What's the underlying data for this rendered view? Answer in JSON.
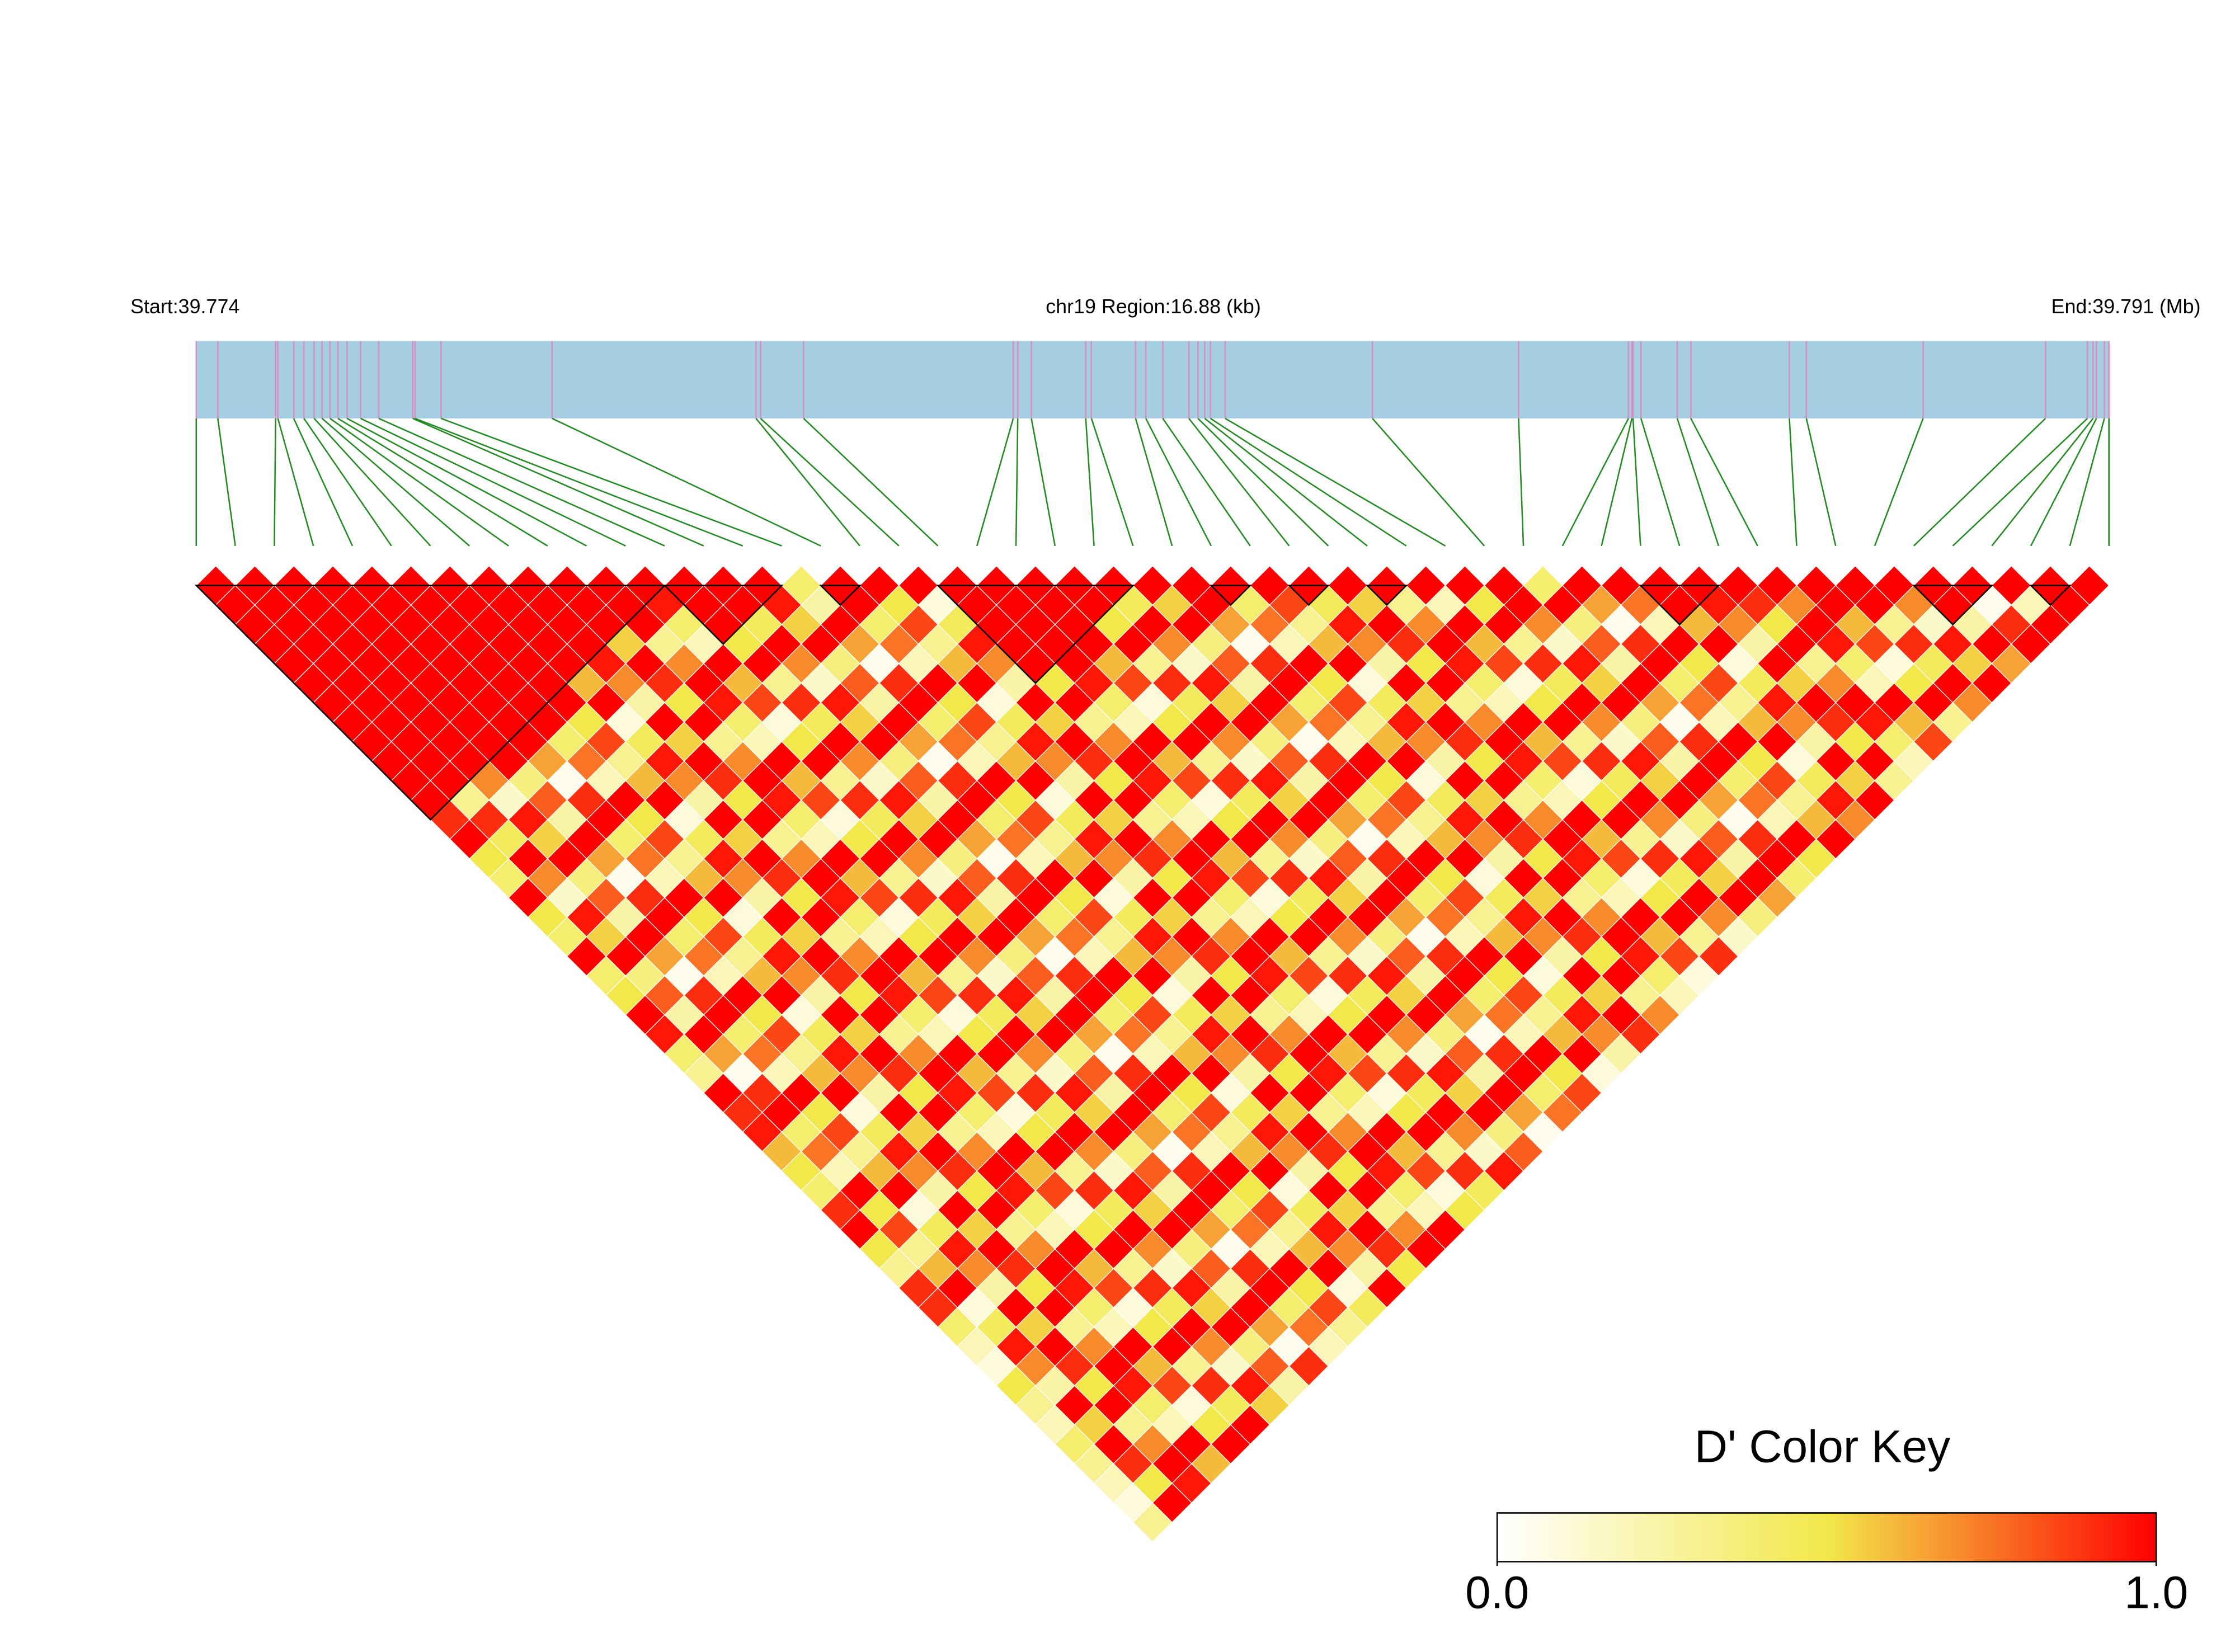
{
  "chart_data": {
    "type": "ld_heatmap",
    "start_label": "Start:39.774",
    "region_label": "chr19 Region:16.88 (kb)",
    "end_label": "End:39.791 (Mb)",
    "xlim": [
      0,
      16.88
    ],
    "snp_positions": [
      0.0,
      0.19,
      0.7,
      0.72,
      0.86,
      0.95,
      1.04,
      1.11,
      1.18,
      1.25,
      1.33,
      1.45,
      1.61,
      1.91,
      1.93,
      2.16,
      3.14,
      4.94,
      4.98,
      5.36,
      7.21,
      7.25,
      7.37,
      7.85,
      7.9,
      8.29,
      8.38,
      8.53,
      8.76,
      8.84,
      8.9,
      8.95,
      9.08,
      10.38,
      11.67,
      12.64,
      12.67,
      12.68,
      12.75,
      13.07,
      13.19,
      14.06,
      14.21,
      15.24,
      16.32,
      16.69,
      16.74,
      16.77,
      16.84,
      16.88
    ],
    "dprime": [
      [
        1,
        1,
        1,
        1,
        1,
        1,
        1,
        1,
        1,
        1,
        1,
        1,
        0.9,
        1,
        0.5,
        0.4,
        1,
        0.5,
        0.4,
        1,
        0.4,
        0.5,
        1,
        0.95,
        0.4,
        0.3,
        1,
        0.9,
        0.95,
        0.6,
        0.5,
        0.4,
        0.9,
        1,
        0.5,
        0.3,
        0.9,
        0.9,
        0.4,
        0.2,
        0.1,
        0.5,
        0.3,
        0.2,
        0.4,
        0.3,
        0.2,
        0.1,
        0.3
      ],
      [
        1,
        1,
        1,
        1,
        1,
        1,
        1,
        1,
        1,
        1,
        1,
        0.3,
        0.9,
        0.45,
        1,
        0.7,
        0.15,
        0.95,
        0.55,
        1,
        0.35,
        0.8,
        0.25,
        1,
        0.65,
        0.05,
        0.9,
        1,
        0.4,
        0.75,
        0.2,
        1,
        0.5,
        0.85,
        0.3,
        0.6,
        1,
        0.1,
        0.45,
        0.95,
        0.7,
        0.25,
        1,
        0.55,
        1,
        0.9,
        0.5,
        1
      ],
      [
        1,
        1,
        1,
        1,
        1,
        1,
        1,
        1,
        1,
        1,
        0.7,
        0.15,
        0.95,
        0.55,
        1,
        0.35,
        0.8,
        0.25,
        1,
        0.65,
        0.05,
        0.9,
        1,
        0.4,
        0.75,
        0.2,
        1,
        0.5,
        0.85,
        0.3,
        0.6,
        1,
        0.1,
        0.45,
        0.95,
        0.7,
        0.25,
        1,
        0.55,
        1,
        0.9,
        0.5,
        1,
        0.3,
        0.7,
        1,
        0.95
      ],
      [
        1,
        1,
        1,
        1,
        1,
        1,
        1,
        1,
        1,
        1,
        0.35,
        0.8,
        0.25,
        1,
        0.65,
        0.05,
        0.9,
        1,
        0.4,
        0.75,
        0.2,
        1,
        0.5,
        0.85,
        0.3,
        0.6,
        1,
        0.1,
        0.45,
        0.95,
        0.7,
        0.25,
        1,
        0.55,
        1,
        0.9,
        0.5,
        1,
        0.3,
        0.7,
        1,
        0.95,
        0.4,
        0.2,
        1,
        0.6
      ],
      [
        1,
        1,
        1,
        1,
        1,
        1,
        1,
        1,
        1,
        0.65,
        0.05,
        0.9,
        1,
        0.4,
        0.75,
        0.2,
        1,
        0.5,
        0.85,
        0.3,
        0.6,
        1,
        0.1,
        0.45,
        0.95,
        0.7,
        0.25,
        1,
        0.55,
        1,
        0.9,
        0.5,
        1,
        0.3,
        0.7,
        1,
        0.95,
        0.4,
        0.2,
        1,
        0.6,
        0.85,
        0.1,
        0.5,
        1
      ],
      [
        1,
        1,
        1,
        1,
        1,
        1,
        1,
        1,
        0.4,
        0.75,
        0.2,
        1,
        0.5,
        0.85,
        0.3,
        0.6,
        1,
        0.1,
        0.45,
        0.95,
        0.7,
        0.25,
        1,
        0.55,
        1,
        0.9,
        0.5,
        1,
        0.3,
        0.7,
        1,
        0.95,
        0.4,
        0.2,
        1,
        0.6,
        0.85,
        0.1,
        0.5,
        1,
        0.3,
        0.9,
        0.45,
        1
      ],
      [
        1,
        1,
        1,
        1,
        1,
        1,
        1,
        0.5,
        0.85,
        0.3,
        0.6,
        1,
        0.1,
        0.45,
        0.95,
        0.7,
        0.25,
        1,
        0.55,
        1,
        0.9,
        0.5,
        1,
        0.3,
        0.7,
        1,
        0.95,
        0.4,
        0.2,
        1,
        0.6,
        0.85,
        0.1,
        0.5,
        1,
        0.3,
        0.9,
        0.45,
        1,
        0.7,
        0.15,
        0.95,
        0.55
      ],
      [
        1,
        1,
        1,
        1,
        1,
        0.6,
        1,
        0.1,
        0.45,
        0.95,
        0.7,
        0.25,
        1,
        0.55,
        1,
        0.9,
        0.5,
        1,
        0.3,
        0.7,
        1,
        0.95,
        0.4,
        0.2,
        1,
        0.6,
        0.85,
        0.1,
        0.5,
        1,
        0.3,
        0.9,
        0.45,
        1,
        0.7,
        0.15,
        0.95,
        0.55,
        1,
        0.35,
        0.8,
        0.25
      ],
      [
        1,
        1,
        1,
        1,
        0.95,
        0.7,
        0.25,
        1,
        0.55,
        1,
        0.9,
        0.5,
        1,
        0.3,
        0.7,
        1,
        0.95,
        0.4,
        0.2,
        1,
        0.6,
        0.85,
        0.1,
        0.5,
        1,
        0.3,
        0.9,
        0.45,
        1,
        0.7,
        0.15,
        0.95,
        0.55,
        1,
        0.35,
        0.8,
        0.25,
        1,
        0.65,
        0.05,
        0.9
      ],
      [
        1,
        1,
        1,
        0.55,
        1,
        0.9,
        0.5,
        1,
        0.3,
        0.7,
        1,
        0.95,
        0.4,
        0.2,
        1,
        0.6,
        0.85,
        0.1,
        0.5,
        1,
        0.3,
        0.9,
        0.45,
        1,
        0.7,
        0.15,
        0.95,
        0.55,
        1,
        0.35,
        0.8,
        0.25,
        1,
        0.65,
        0.05,
        0.9,
        1,
        0.4,
        0.75,
        0.2
      ],
      [
        1,
        1,
        1,
        0.3,
        0.7,
        1,
        0.95,
        0.4,
        0.2,
        1,
        0.6,
        0.85,
        0.1,
        0.5,
        1,
        0.3,
        0.9,
        0.45,
        1,
        0.7,
        0.15,
        0.95,
        0.55,
        1,
        0.35,
        0.8,
        0.25,
        1,
        0.65,
        0.05,
        0.9,
        1,
        0.4,
        0.75,
        0.2,
        1,
        0.5,
        0.85,
        0.3
      ],
      [
        1,
        0.95,
        0.4,
        0.2,
        1,
        0.6,
        0.85,
        0.1,
        0.5,
        1,
        0.3,
        0.9,
        0.45,
        1,
        0.7,
        0.15,
        0.95,
        0.55,
        1,
        0.35,
        0.8,
        0.25,
        1,
        0.65,
        0.05,
        0.9,
        1,
        0.4,
        0.75,
        0.2,
        1,
        0.5,
        0.85,
        0.3,
        0.6,
        1,
        0.1,
        0.45
      ],
      [
        1,
        1,
        1,
        0.5,
        1,
        0.3,
        0.9,
        0.45,
        1,
        0.7,
        0.15,
        0.95,
        0.55,
        1,
        0.35,
        0.8,
        0.25,
        1,
        0.65,
        0.05,
        0.9,
        1,
        0.4,
        0.75,
        0.2,
        1,
        0.5,
        0.85,
        0.3,
        0.6,
        1,
        0.1,
        0.45,
        0.95,
        0.7,
        0.25,
        1
      ],
      [
        1,
        1,
        0.45,
        1,
        0.7,
        0.15,
        0.95,
        0.55,
        1,
        0.35,
        0.8,
        0.25,
        1,
        0.65,
        0.05,
        0.9,
        1,
        0.4,
        0.75,
        0.2,
        1,
        0.5,
        0.85,
        0.3,
        0.6,
        1,
        0.1,
        0.45,
        0.95,
        0.7,
        0.25,
        1,
        0.55,
        1,
        0.9,
        0.5
      ],
      [
        1,
        0.95,
        0.55,
        1,
        0.35,
        0.8,
        0.25,
        1,
        0.65,
        0.05,
        0.9,
        1,
        0.4,
        0.75,
        0.2,
        1,
        0.5,
        0.85,
        0.3,
        0.6,
        1,
        0.1,
        0.45,
        0.95,
        0.7,
        0.25,
        1,
        0.55,
        1,
        0.9,
        0.5,
        1,
        0.3,
        0.7,
        1
      ],
      [
        0.4,
        0.25,
        1,
        0.65,
        0.05,
        0.9,
        1,
        0.4,
        0.75,
        0.2,
        1,
        0.5,
        0.85,
        0.3,
        0.6,
        1,
        0.1,
        0.45,
        0.95,
        0.7,
        0.25,
        1,
        0.55,
        1,
        0.9,
        0.5,
        1,
        0.3,
        0.7,
        1,
        0.95,
        0.4,
        0.2,
        1
      ],
      [
        1,
        1,
        0.4,
        0.75,
        0.2,
        1,
        0.5,
        0.85,
        0.3,
        0.6,
        1,
        0.1,
        0.45,
        0.95,
        0.7,
        0.25,
        1,
        0.55,
        1,
        0.9,
        0.5,
        1,
        0.3,
        0.7,
        1,
        0.95,
        0.4,
        0.2,
        1,
        0.6,
        0.85,
        0.1,
        0.5
      ],
      [
        1,
        0.5,
        0.85,
        0.3,
        0.6,
        1,
        0.1,
        0.45,
        0.95,
        0.7,
        0.25,
        1,
        0.55,
        1,
        0.9,
        0.5,
        1,
        0.3,
        0.7,
        1,
        0.95,
        0.4,
        0.2,
        1,
        0.6,
        0.85,
        0.1,
        0.5,
        1,
        0.3,
        0.9,
        0.45
      ],
      [
        1,
        0.1,
        0.45,
        0.95,
        0.7,
        0.25,
        1,
        0.55,
        1,
        0.9,
        0.5,
        1,
        0.3,
        0.7,
        1,
        0.95,
        0.4,
        0.2,
        1,
        0.6,
        0.85,
        0.1,
        0.5,
        1,
        0.3,
        0.9,
        0.45,
        1,
        0.7,
        0.15,
        0.95
      ],
      [
        1,
        1,
        1,
        1,
        1,
        0.5,
        1,
        0.3,
        0.7,
        1,
        0.95,
        0.4,
        0.2,
        1,
        0.6,
        0.85,
        0.1,
        0.5,
        1,
        0.3,
        0.9,
        0.45,
        1,
        0.7,
        0.15,
        0.95,
        0.55,
        1,
        0.35,
        0.8
      ],
      [
        1,
        1,
        1,
        1,
        1,
        0.95,
        0.4,
        0.2,
        1,
        0.6,
        0.85,
        0.1,
        0.5,
        1,
        0.3,
        0.9,
        0.45,
        1,
        0.7,
        0.15,
        0.95,
        0.55,
        1,
        0.35,
        0.8,
        0.25,
        1,
        0.65,
        0.05
      ],
      [
        1,
        1,
        1,
        1,
        0.6,
        0.85,
        0.1,
        0.5,
        1,
        0.3,
        0.9,
        0.45,
        1,
        0.7,
        0.15,
        0.95,
        0.55,
        1,
        0.35,
        0.8,
        0.25,
        1,
        0.65,
        0.05,
        0.9,
        1,
        0.4,
        0.75
      ],
      [
        1,
        1,
        0.5,
        1,
        0.3,
        0.9,
        0.45,
        1,
        0.7,
        0.15,
        0.95,
        0.55,
        1,
        0.35,
        0.8,
        0.25,
        1,
        0.65,
        0.05,
        0.9,
        1,
        0.4,
        0.75,
        0.2,
        1,
        0.5,
        0.85
      ],
      [
        1,
        0.45,
        1,
        0.7,
        0.15,
        0.95,
        0.55,
        1,
        0.35,
        0.8,
        0.25,
        1,
        0.65,
        0.05,
        0.9,
        1,
        0.4,
        0.75,
        0.2,
        1,
        0.5,
        0.85,
        0.3,
        0.6,
        1,
        0.1
      ],
      [
        1,
        0.55,
        1,
        0.35,
        0.8,
        0.25,
        1,
        0.65,
        0.05,
        0.9,
        1,
        0.4,
        0.75,
        0.2,
        1,
        0.5,
        0.85,
        0.3,
        0.6,
        1,
        0.1,
        0.45,
        0.95,
        0.7,
        0.25
      ],
      [
        1,
        1,
        0.65,
        0.05,
        0.9,
        1,
        0.4,
        0.75,
        0.2,
        1,
        0.5,
        0.85,
        0.3,
        0.6,
        1,
        0.1,
        0.45,
        0.95,
        0.7,
        0.25,
        1,
        0.55,
        1,
        0.9
      ],
      [
        1,
        0.4,
        0.75,
        0.2,
        1,
        0.5,
        0.85,
        0.3,
        0.6,
        1,
        0.1,
        0.45,
        0.95,
        0.7,
        0.25,
        1,
        0.55,
        1,
        0.9,
        0.5,
        1,
        0.3,
        0.7
      ],
      [
        1,
        0.85,
        0.3,
        0.6,
        1,
        0.1,
        0.45,
        0.95,
        0.7,
        0.25,
        1,
        0.55,
        1,
        0.9,
        0.5,
        1,
        0.3,
        0.7,
        1,
        0.95,
        0.4,
        0.2
      ],
      [
        1,
        0.45,
        0.95,
        0.7,
        0.25,
        1,
        0.55,
        1,
        0.9,
        0.5,
        1,
        0.3,
        0.7,
        1,
        0.95,
        0.4,
        0.2,
        1,
        0.6,
        0.85,
        0.1
      ],
      [
        1,
        0.55,
        1,
        0.9,
        0.5,
        1,
        0.3,
        0.7,
        1,
        0.95,
        0.4,
        0.2,
        1,
        0.6,
        0.85,
        0.1,
        0.5,
        1,
        0.3,
        0.9
      ],
      [
        1,
        0.3,
        0.7,
        1,
        0.95,
        0.4,
        0.2,
        1,
        0.6,
        0.85,
        0.1,
        0.5,
        1,
        0.3,
        0.9,
        0.45,
        1,
        0.7,
        0.15
      ],
      [
        1,
        0.2,
        1,
        0.6,
        0.85,
        0.1,
        0.5,
        1,
        0.3,
        0.9,
        0.45,
        1,
        0.7,
        0.15,
        0.95,
        0.55,
        1,
        0.35
      ],
      [
        1,
        0.5,
        1,
        0.3,
        0.9,
        0.45,
        1,
        0.7,
        0.15,
        0.95,
        0.55,
        1,
        0.35,
        0.8,
        0.25,
        1,
        0.65
      ],
      [
        1,
        1,
        0.7,
        0.15,
        0.95,
        0.55,
        1,
        0.35,
        0.8,
        0.25,
        1,
        0.65,
        0.05,
        0.9,
        1,
        0.4
      ],
      [
        0.4,
        1,
        0.35,
        0.8,
        0.25,
        1,
        0.65,
        0.05,
        0.9,
        1,
        0.4,
        0.75,
        0.2,
        1,
        0.5
      ],
      [
        1,
        0.65,
        0.05,
        0.9,
        1,
        0.4,
        0.75,
        0.2,
        1,
        0.5,
        0.85,
        0.3,
        0.6,
        1
      ],
      [
        1,
        0.75,
        0.2,
        1,
        0.5,
        0.85,
        0.3,
        0.6,
        1,
        0.1,
        0.45,
        0.95,
        0.7
      ],
      [
        1,
        1,
        0.6,
        1,
        0.1,
        0.45,
        0.95,
        0.7,
        0.25,
        1,
        0.55,
        1
      ],
      [
        1,
        0.95,
        0.7,
        0.25,
        1,
        0.55,
        1,
        0.9,
        0.5,
        1,
        0.3
      ],
      [
        1,
        0.9,
        0.5,
        1,
        0.3,
        0.7,
        1,
        0.95,
        0.4,
        0.2
      ],
      [
        1,
        0.7,
        1,
        0.95,
        0.4,
        0.2,
        1,
        0.6,
        0.85
      ],
      [
        1,
        1,
        0.6,
        0.85,
        0.1,
        0.5,
        1,
        0.3
      ],
      [
        1,
        1,
        0.3,
        0.9,
        0.45,
        1,
        0.7
      ],
      [
        1,
        0.7,
        0.15,
        0.95,
        0.55,
        1
      ],
      [
        1,
        1,
        0.25,
        1,
        0.65
      ],
      [
        1,
        0.05,
        0.9,
        1
      ],
      [
        1,
        0.2,
        1
      ],
      [
        1,
        1
      ],
      [
        1
      ]
    ],
    "blocks": [
      [
        0,
        12
      ],
      [
        12,
        15
      ],
      [
        16,
        17
      ],
      [
        19,
        24
      ],
      [
        26,
        27
      ],
      [
        28,
        29
      ],
      [
        30,
        31
      ],
      [
        37,
        39
      ],
      [
        44,
        46
      ],
      [
        47,
        48
      ]
    ],
    "key_title": "D' Color Key",
    "colorscale": [
      "#ffffff",
      "#f2e84a",
      "#ff0000"
    ],
    "key_lim": [
      0,
      1
    ],
    "key_ticks": [
      {
        "value": 0,
        "label": "0.0"
      },
      {
        "value": 1,
        "label": "1.0"
      }
    ],
    "bar_color": "#a6cee3",
    "snp_line_color": "#d98ec0",
    "connector_color": "#228b22",
    "block_color": "#000000"
  }
}
